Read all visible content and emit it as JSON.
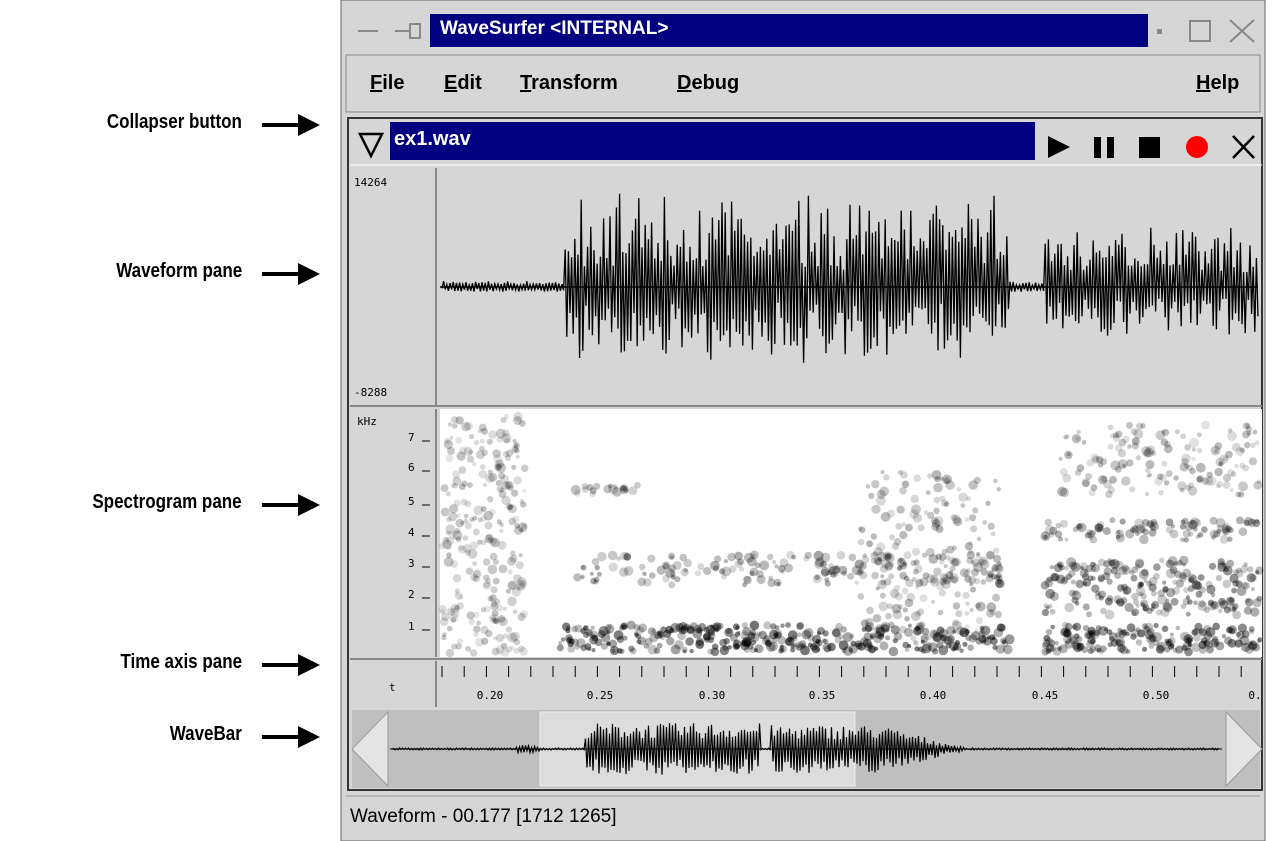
{
  "annotations": [
    "Collapser button",
    "Waveform pane",
    "Spectrogram pane",
    "Time axis pane",
    "WaveBar"
  ],
  "window": {
    "title": "WaveSurfer <INTERNAL>"
  },
  "menu": [
    "File",
    "Edit",
    "Transform",
    "Debug",
    "Help"
  ],
  "sound": {
    "file": "ex1.wav"
  },
  "waveform": {
    "max": "14264",
    "min": "-8288"
  },
  "spectrogram": {
    "unit": "kHz",
    "labels": [
      "7",
      "6",
      "5",
      "4",
      "3",
      "2",
      "1"
    ]
  },
  "time_axis": {
    "unit": "t",
    "labels": [
      "0.20",
      "0.25",
      "0.30",
      "0.35",
      "0.40",
      "0.45",
      "0.50",
      "0."
    ]
  },
  "status": "Waveform - 00.177 [1712 1265]"
}
